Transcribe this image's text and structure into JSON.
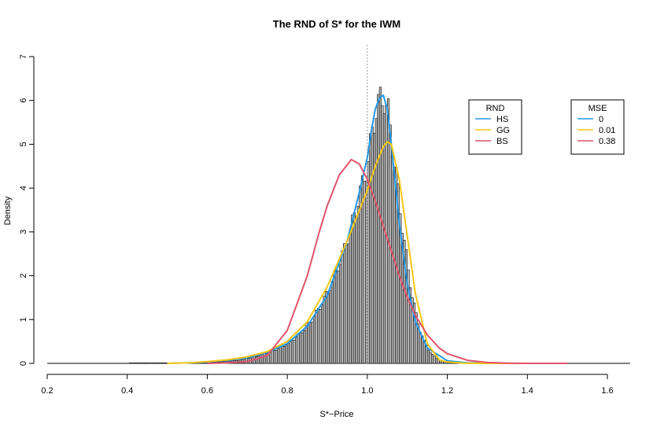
{
  "chart_data": {
    "type": "bar",
    "title": "The RND of S* for the IWM",
    "xlabel": "S*−Price",
    "ylabel": "Density",
    "xlim": [
      0.2,
      1.62
    ],
    "ylim": [
      0,
      7
    ],
    "x_ticks": [
      "0.2",
      "0.4",
      "0.6",
      "0.8",
      "1.0",
      "1.2",
      "1.4",
      "1.6"
    ],
    "y_ticks": [
      "0",
      "1",
      "2",
      "3",
      "4",
      "5",
      "6",
      "7"
    ],
    "reference_line": {
      "x": 1.0,
      "style": "dotted",
      "color": "#999999"
    },
    "histogram": {
      "bin_width": 0.005,
      "color": "#000000",
      "fill": "#bbbbbb",
      "bins": [
        {
          "x": 0.405,
          "y": 0.01
        },
        {
          "x": 0.48,
          "y": 0.01
        },
        {
          "x": 0.56,
          "y": 0.01
        },
        {
          "x": 0.6,
          "y": 0.02
        },
        {
          "x": 0.625,
          "y": 0.03
        },
        {
          "x": 0.65,
          "y": 0.05
        },
        {
          "x": 0.675,
          "y": 0.07
        },
        {
          "x": 0.7,
          "y": 0.12
        },
        {
          "x": 0.72,
          "y": 0.16
        },
        {
          "x": 0.74,
          "y": 0.22
        },
        {
          "x": 0.76,
          "y": 0.28
        },
        {
          "x": 0.78,
          "y": 0.36
        },
        {
          "x": 0.8,
          "y": 0.46
        },
        {
          "x": 0.82,
          "y": 0.6
        },
        {
          "x": 0.84,
          "y": 0.78
        },
        {
          "x": 0.86,
          "y": 1.0
        },
        {
          "x": 0.88,
          "y": 1.3
        },
        {
          "x": 0.9,
          "y": 1.65
        },
        {
          "x": 0.92,
          "y": 2.1
        },
        {
          "x": 0.94,
          "y": 2.6
        },
        {
          "x": 0.96,
          "y": 3.2
        },
        {
          "x": 0.98,
          "y": 3.9
        },
        {
          "x": 1.0,
          "y": 4.6
        },
        {
          "x": 1.01,
          "y": 5.3
        },
        {
          "x": 1.02,
          "y": 5.8
        },
        {
          "x": 1.03,
          "y": 6.0
        },
        {
          "x": 1.04,
          "y": 6.05
        },
        {
          "x": 1.05,
          "y": 5.7
        },
        {
          "x": 1.06,
          "y": 5.0
        },
        {
          "x": 1.07,
          "y": 4.3
        },
        {
          "x": 1.08,
          "y": 3.5
        },
        {
          "x": 1.09,
          "y": 2.8
        },
        {
          "x": 1.1,
          "y": 2.1
        },
        {
          "x": 1.11,
          "y": 1.55
        },
        {
          "x": 1.12,
          "y": 1.1
        },
        {
          "x": 1.13,
          "y": 0.75
        },
        {
          "x": 1.14,
          "y": 0.5
        },
        {
          "x": 1.15,
          "y": 0.32
        },
        {
          "x": 1.16,
          "y": 0.2
        },
        {
          "x": 1.17,
          "y": 0.12
        },
        {
          "x": 1.18,
          "y": 0.08
        },
        {
          "x": 1.19,
          "y": 0.05
        },
        {
          "x": 1.2,
          "y": 0.04
        },
        {
          "x": 1.22,
          "y": 0.03
        },
        {
          "x": 1.24,
          "y": 0.02
        },
        {
          "x": 1.26,
          "y": 0.02
        },
        {
          "x": 1.28,
          "y": 0.01
        },
        {
          "x": 1.3,
          "y": 0.01
        },
        {
          "x": 1.34,
          "y": 0.01
        }
      ]
    },
    "series": [
      {
        "name": "HS",
        "color": "#2297E6",
        "x": [
          0.5,
          0.55,
          0.6,
          0.65,
          0.7,
          0.75,
          0.8,
          0.85,
          0.9,
          0.95,
          0.98,
          1.0,
          1.01,
          1.02,
          1.03,
          1.04,
          1.05,
          1.06,
          1.07,
          1.08,
          1.1,
          1.12,
          1.15,
          1.2,
          1.25,
          1.3,
          1.4,
          1.5
        ],
        "y": [
          0.0,
          0.01,
          0.03,
          0.07,
          0.13,
          0.25,
          0.45,
          0.85,
          1.55,
          2.8,
          3.9,
          4.7,
          5.3,
          5.8,
          6.05,
          6.12,
          5.8,
          5.0,
          4.1,
          3.2,
          1.8,
          0.95,
          0.35,
          0.06,
          0.01,
          0.0,
          0.0,
          0.0
        ]
      },
      {
        "name": "GG",
        "color": "#F5C710",
        "x": [
          0.5,
          0.55,
          0.6,
          0.65,
          0.7,
          0.75,
          0.8,
          0.85,
          0.9,
          0.95,
          1.0,
          1.02,
          1.04,
          1.05,
          1.06,
          1.08,
          1.1,
          1.12,
          1.15,
          1.18,
          1.2,
          1.25,
          1.3,
          1.4,
          1.5
        ],
        "y": [
          0.0,
          0.01,
          0.04,
          0.08,
          0.15,
          0.27,
          0.5,
          0.95,
          1.75,
          2.8,
          3.95,
          4.5,
          4.95,
          5.05,
          5.0,
          4.2,
          2.9,
          1.6,
          0.45,
          0.08,
          0.03,
          0.0,
          0.0,
          0.0,
          0.0
        ]
      },
      {
        "name": "BS",
        "color": "#DF536B",
        "x": [
          0.6,
          0.65,
          0.7,
          0.75,
          0.8,
          0.85,
          0.88,
          0.9,
          0.93,
          0.96,
          0.98,
          1.0,
          1.02,
          1.05,
          1.08,
          1.1,
          1.12,
          1.15,
          1.18,
          1.2,
          1.25,
          1.3,
          1.35,
          1.4,
          1.5
        ],
        "y": [
          0.0,
          0.01,
          0.04,
          0.18,
          0.75,
          2.0,
          3.0,
          3.6,
          4.3,
          4.65,
          4.55,
          4.2,
          3.7,
          2.85,
          2.0,
          1.5,
          1.1,
          0.65,
          0.35,
          0.22,
          0.07,
          0.02,
          0.005,
          0.0,
          0.0
        ]
      }
    ],
    "legends": [
      {
        "title": "RND",
        "entries": [
          {
            "label": "HS",
            "color": "#2297E6"
          },
          {
            "label": "GG",
            "color": "#F5C710"
          },
          {
            "label": "BS",
            "color": "#DF536B"
          }
        ]
      },
      {
        "title": "MSE",
        "entries": [
          {
            "label": "0",
            "color": "#2297E6"
          },
          {
            "label": "0.01",
            "color": "#F5C710"
          },
          {
            "label": "0.38",
            "color": "#DF536B"
          }
        ]
      }
    ]
  }
}
